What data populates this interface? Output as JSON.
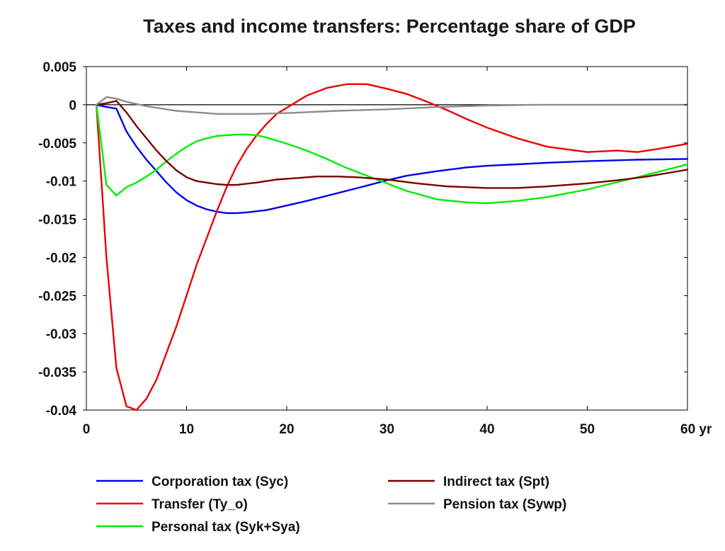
{
  "chart_data": {
    "type": "line",
    "title": "Taxes and income transfers: Percentage share of GDP",
    "xlabel": "",
    "ylabel": "",
    "xlim": [
      0,
      60
    ],
    "ylim": [
      -0.04,
      0.005
    ],
    "x_ticks": [
      0,
      10,
      20,
      30,
      40,
      50,
      60
    ],
    "x_tick_labels": [
      "0",
      "10",
      "20",
      "30",
      "40",
      "50",
      "60 yr"
    ],
    "y_ticks": [
      0.005,
      0,
      -0.005,
      -0.01,
      -0.015,
      -0.02,
      -0.025,
      -0.03,
      -0.035,
      -0.04
    ],
    "y_tick_labels": [
      "0.005",
      "0",
      "-0.005",
      "-0.01",
      "-0.015",
      "-0.02",
      "-0.025",
      "-0.03",
      "-0.035",
      "-0.04"
    ],
    "grid": false,
    "zero_line": true,
    "legend_position": "bottom",
    "series": [
      {
        "name": "Corporation tax (Syc)",
        "color": "#0000ee",
        "x": [
          1,
          2,
          3,
          4,
          5,
          6,
          7,
          8,
          9,
          10,
          11,
          12,
          13,
          14,
          15,
          16,
          18,
          20,
          22,
          25,
          28,
          30,
          32,
          35,
          38,
          40,
          43,
          46,
          50,
          55,
          60
        ],
        "y": [
          0,
          -0.0003,
          -0.0005,
          -0.0035,
          -0.0055,
          -0.0072,
          -0.0087,
          -0.0102,
          -0.0115,
          -0.0125,
          -0.0132,
          -0.0137,
          -0.014,
          -0.0142,
          -0.0142,
          -0.0141,
          -0.0138,
          -0.0132,
          -0.0126,
          -0.0116,
          -0.0106,
          -0.0099,
          -0.0093,
          -0.0087,
          -0.0082,
          -0.008,
          -0.0078,
          -0.0076,
          -0.0074,
          -0.0072,
          -0.0071
        ]
      },
      {
        "name": "Transfer (Ty_o)",
        "color": "#ee0000",
        "x": [
          1,
          2,
          3,
          4,
          5,
          6,
          7,
          8,
          9,
          10,
          11,
          12,
          13,
          14,
          15,
          16,
          17,
          18,
          19,
          20,
          22,
          24,
          26,
          28,
          30,
          32,
          34,
          36,
          38,
          40,
          43,
          46,
          50,
          53,
          55,
          57,
          60
        ],
        "y": [
          0,
          -0.02,
          -0.0345,
          -0.0395,
          -0.04,
          -0.0385,
          -0.036,
          -0.0325,
          -0.029,
          -0.025,
          -0.021,
          -0.0175,
          -0.014,
          -0.0108,
          -0.008,
          -0.0058,
          -0.004,
          -0.0025,
          -0.0012,
          -0.0004,
          0.0012,
          0.0022,
          0.0027,
          0.0027,
          0.0021,
          0.0014,
          0.0004,
          -0.0007,
          -0.0019,
          -0.003,
          -0.0044,
          -0.0055,
          -0.0062,
          -0.006,
          -0.0062,
          -0.0058,
          -0.0051
        ]
      },
      {
        "name": "Personal tax (Syk+Sya)",
        "color": "#00ee00",
        "x": [
          1,
          2,
          3,
          4,
          5,
          6,
          7,
          8,
          9,
          10,
          11,
          12,
          13,
          14,
          15,
          16,
          17,
          18,
          20,
          22,
          24,
          26,
          28,
          30,
          32,
          35,
          38,
          40,
          43,
          46,
          50,
          55,
          60
        ],
        "y": [
          0,
          -0.0105,
          -0.0119,
          -0.0108,
          -0.0102,
          -0.0094,
          -0.0085,
          -0.0074,
          -0.0064,
          -0.0055,
          -0.0048,
          -0.0044,
          -0.0041,
          -0.004,
          -0.0039,
          -0.0039,
          -0.004,
          -0.0043,
          -0.0051,
          -0.006,
          -0.0071,
          -0.0083,
          -0.0093,
          -0.0103,
          -0.0113,
          -0.0124,
          -0.0128,
          -0.0129,
          -0.0126,
          -0.0121,
          -0.0111,
          -0.0095,
          -0.0078
        ]
      },
      {
        "name": "Indirect tax (Spt)",
        "color": "#7a0000",
        "x": [
          1,
          2,
          3,
          4,
          5,
          6,
          7,
          8,
          9,
          10,
          11,
          12,
          13,
          14,
          15,
          17,
          19,
          21,
          23,
          25,
          27,
          30,
          33,
          36,
          40,
          43,
          46,
          50,
          53,
          56,
          60
        ],
        "y": [
          0,
          0.0002,
          0.0005,
          -0.001,
          -0.0028,
          -0.0044,
          -0.006,
          -0.0074,
          -0.0086,
          -0.0095,
          -0.01,
          -0.0102,
          -0.0104,
          -0.0105,
          -0.0105,
          -0.0102,
          -0.0098,
          -0.0096,
          -0.0094,
          -0.0094,
          -0.0095,
          -0.0098,
          -0.0103,
          -0.0107,
          -0.0109,
          -0.0109,
          -0.0107,
          -0.0103,
          -0.0099,
          -0.0094,
          -0.0085
        ]
      },
      {
        "name": "Pension tax (Sywp)",
        "color": "#8c8c8c",
        "x": [
          1,
          2,
          3,
          4,
          5,
          6,
          7,
          8,
          9,
          10,
          11,
          12,
          13,
          14,
          15,
          17,
          20,
          25,
          30,
          35,
          40,
          45,
          50,
          55,
          60
        ],
        "y": [
          0,
          0.001,
          0.0008,
          0.0004,
          0.0001,
          -0.0002,
          -0.0004,
          -0.0006,
          -0.0008,
          -0.0009,
          -0.001,
          -0.0011,
          -0.0012,
          -0.0012,
          -0.0012,
          -0.0012,
          -0.0011,
          -0.0008,
          -0.0006,
          -0.0003,
          -0.0001,
          0,
          0,
          0,
          0
        ]
      }
    ]
  },
  "legend": {
    "items": [
      {
        "label": "Corporation tax (Syc)",
        "color": "#0000ee",
        "col": 0,
        "row": 0
      },
      {
        "label": "Transfer (Ty_o)",
        "color": "#ee0000",
        "col": 0,
        "row": 1
      },
      {
        "label": "Personal tax (Syk+Sya)",
        "color": "#00ee00",
        "col": 0,
        "row": 2
      },
      {
        "label": "Indirect tax (Spt)",
        "color": "#7a0000",
        "col": 1,
        "row": 0
      },
      {
        "label": "Pension tax (Sywp)",
        "color": "#8c8c8c",
        "col": 1,
        "row": 1
      }
    ]
  }
}
